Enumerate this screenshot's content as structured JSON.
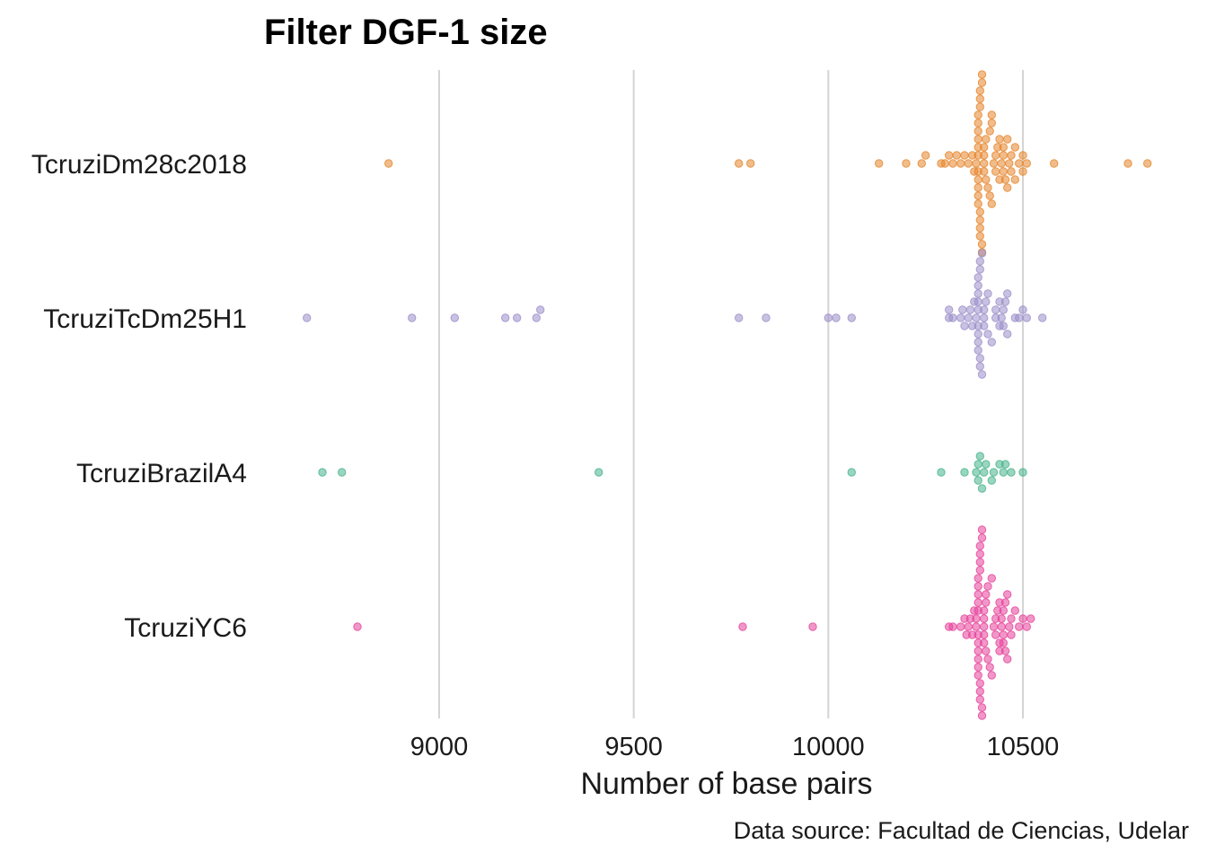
{
  "chart_data": {
    "type": "scatter",
    "title": "Filter DGF-1 size",
    "xlabel": "Number of base pairs",
    "ylabel": "",
    "caption": "Data source: Facultad de Ciencias, Udelar",
    "xlim": [
      8570,
      10880
    ],
    "xticks": [
      9000,
      9500,
      10000,
      10500
    ],
    "xtick_labels": [
      "9000",
      "9500",
      "10000",
      "10500"
    ],
    "grid": "vertical major",
    "legend": "none",
    "categories": [
      "TcruziDm28c2018",
      "TcruziTcDm25H1",
      "TcruziBrazilA4",
      "TcruziYC6"
    ],
    "series": [
      {
        "name": "TcruziDm28c2018",
        "color": "#E6852B",
        "values": [
          8870,
          9770,
          9800,
          10130,
          10200,
          10240,
          10250,
          10290,
          10300,
          10310,
          10320,
          10330,
          10340,
          10350,
          10360,
          10370,
          10375,
          10380,
          10385,
          10385,
          10385,
          10385,
          10385,
          10385,
          10385,
          10385,
          10385,
          10385,
          10385,
          10390,
          10390,
          10390,
          10390,
          10390,
          10390,
          10390,
          10395,
          10395,
          10395,
          10395,
          10400,
          10400,
          10400,
          10400,
          10405,
          10405,
          10410,
          10415,
          10415,
          10420,
          10420,
          10420,
          10425,
          10430,
          10430,
          10435,
          10440,
          10440,
          10445,
          10450,
          10450,
          10450,
          10455,
          10460,
          10460,
          10465,
          10470,
          10470,
          10480,
          10480,
          10490,
          10500,
          10500,
          10510,
          10580,
          10770,
          10820
        ]
      },
      {
        "name": "TcruziTcDm25H1",
        "color": "#9B8EC9",
        "values": [
          8660,
          8930,
          9040,
          9170,
          9200,
          9250,
          9260,
          9770,
          9840,
          10000,
          10020,
          10060,
          10310,
          10310,
          10320,
          10340,
          10345,
          10350,
          10360,
          10365,
          10370,
          10375,
          10380,
          10385,
          10385,
          10385,
          10385,
          10385,
          10385,
          10385,
          10385,
          10385,
          10390,
          10390,
          10390,
          10390,
          10395,
          10395,
          10400,
          10400,
          10400,
          10405,
          10410,
          10410,
          10420,
          10430,
          10430,
          10440,
          10440,
          10445,
          10450,
          10450,
          10455,
          10460,
          10460,
          10480,
          10490,
          10500,
          10510,
          10550
        ]
      },
      {
        "name": "TcruziBrazilA4",
        "color": "#45B38A",
        "values": [
          8700,
          8750,
          9410,
          10060,
          10290,
          10350,
          10380,
          10385,
          10385,
          10390,
          10395,
          10400,
          10405,
          10420,
          10425,
          10440,
          10450,
          10455,
          10470,
          10500
        ]
      },
      {
        "name": "TcruziYC6",
        "color": "#E6419A",
        "values": [
          8790,
          9780,
          9960,
          10310,
          10320,
          10340,
          10350,
          10355,
          10360,
          10365,
          10370,
          10375,
          10380,
          10380,
          10385,
          10385,
          10385,
          10385,
          10385,
          10385,
          10385,
          10385,
          10385,
          10385,
          10385,
          10390,
          10390,
          10390,
          10390,
          10390,
          10390,
          10390,
          10395,
          10395,
          10395,
          10395,
          10400,
          10400,
          10400,
          10400,
          10400,
          10405,
          10405,
          10405,
          10410,
          10410,
          10415,
          10420,
          10420,
          10425,
          10430,
          10430,
          10435,
          10440,
          10440,
          10440,
          10445,
          10445,
          10450,
          10450,
          10450,
          10455,
          10455,
          10460,
          10460,
          10465,
          10470,
          10470,
          10480,
          10490,
          10500,
          10510,
          10520
        ]
      }
    ]
  }
}
